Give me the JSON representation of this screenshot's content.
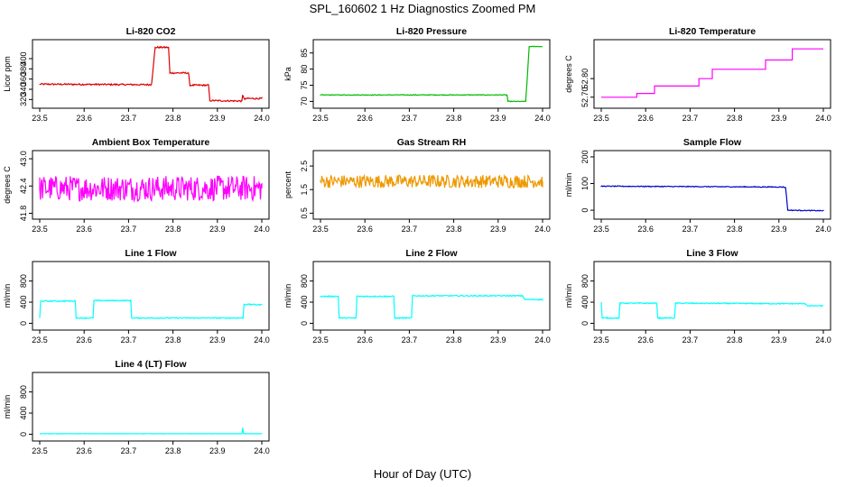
{
  "figure": {
    "title": "SPL_160602  1 Hz Diagnostics Zoomed PM",
    "xlabel": "Hour of Day (UTC)"
  },
  "chart_data": [
    {
      "type": "line",
      "title": "Li-820 CO2",
      "ylabel": "Licor ppm",
      "color": "#dd0000",
      "xlim": [
        23.5,
        24.0
      ],
      "ylim": [
        310,
        430
      ],
      "xticks": [
        "23.5",
        "23.6",
        "23.7",
        "23.8",
        "23.9",
        "24.0"
      ],
      "yticks": [
        {
          "value": 320,
          "label": "320"
        },
        {
          "value": 340,
          "label": "340"
        },
        {
          "value": 360,
          "label": "360"
        },
        {
          "value": 380,
          "label": "380"
        },
        {
          "value": 400,
          "label": "400"
        }
      ],
      "series": [
        {
          "name": "CO2",
          "noise": 1.5,
          "x": [
            23.5,
            23.75,
            23.752,
            23.76,
            23.765,
            23.79,
            23.793,
            23.835,
            23.838,
            23.88,
            23.883,
            23.955,
            23.957,
            23.962,
            23.965,
            24.0
          ],
          "y": [
            350,
            349,
            352,
            422,
            422,
            422,
            372,
            372,
            348,
            348,
            318,
            317,
            328,
            320,
            322,
            322
          ]
        }
      ]
    },
    {
      "type": "line",
      "title": "Li-820 Pressure",
      "ylabel": "kPa",
      "color": "#00bb00",
      "xlim": [
        23.5,
        24.0
      ],
      "ylim": [
        69,
        88
      ],
      "xticks": [
        "23.5",
        "23.6",
        "23.7",
        "23.8",
        "23.9",
        "24.0"
      ],
      "yticks": [
        {
          "value": 70,
          "label": "70"
        },
        {
          "value": 75,
          "label": "75"
        },
        {
          "value": 80,
          "label": "80"
        },
        {
          "value": 85,
          "label": "85"
        }
      ],
      "series": [
        {
          "name": "Pressure",
          "noise": 0.1,
          "x": [
            23.5,
            23.92,
            23.922,
            23.962,
            23.965,
            23.968,
            23.97,
            24.0
          ],
          "y": [
            72,
            72,
            70,
            70,
            76,
            83,
            87,
            87
          ]
        }
      ]
    },
    {
      "type": "line",
      "title": "Li-820 Temperature",
      "ylabel": "degrees C",
      "color": "#ff00ff",
      "xlim": [
        23.5,
        24.0
      ],
      "ylim": [
        52.66,
        52.99
      ],
      "xticks": [
        "23.5",
        "23.6",
        "23.7",
        "23.8",
        "23.9",
        "24.0"
      ],
      "yticks": [
        {
          "value": 52.7,
          "label": "52.70"
        },
        {
          "value": 52.8,
          "label": "52.80"
        }
      ],
      "series": [
        {
          "name": "Temperature",
          "noise": 0.0,
          "x": [
            23.5,
            23.58,
            23.58,
            23.62,
            23.62,
            23.72,
            23.72,
            23.75,
            23.75,
            23.87,
            23.87,
            23.93,
            23.93,
            24.0
          ],
          "y": [
            52.7,
            52.7,
            52.72,
            52.72,
            52.76,
            52.76,
            52.8,
            52.8,
            52.85,
            52.85,
            52.9,
            52.9,
            52.96,
            52.96
          ]
        }
      ]
    },
    {
      "type": "line",
      "title": "Ambient Box Temperature",
      "ylabel": "degrees C",
      "color": "#ff00ff",
      "xlim": [
        23.5,
        24.0
      ],
      "ylim": [
        41.75,
        43.1
      ],
      "xticks": [
        "23.5",
        "23.6",
        "23.7",
        "23.8",
        "23.9",
        "24.0"
      ],
      "yticks": [
        {
          "value": 41.8,
          "label": "41.8"
        },
        {
          "value": 42.4,
          "label": "42.4"
        },
        {
          "value": 43.0,
          "label": "43.0"
        }
      ],
      "series": [
        {
          "name": "Box Temperature",
          "noise": 0.28,
          "x": [
            23.5,
            24.0
          ],
          "y": [
            42.35,
            42.35
          ]
        }
      ]
    },
    {
      "type": "line",
      "title": "Gas Stream RH",
      "ylabel": "percent",
      "color": "#ee9900",
      "xlim": [
        23.5,
        24.0
      ],
      "ylim": [
        0.4,
        3.0
      ],
      "xticks": [
        "23.5",
        "23.6",
        "23.7",
        "23.8",
        "23.9",
        "24.0"
      ],
      "yticks": [
        {
          "value": 0.5,
          "label": "0.5"
        },
        {
          "value": 1.5,
          "label": "1.5"
        },
        {
          "value": 2.5,
          "label": "2.5"
        }
      ],
      "series": [
        {
          "name": "RH",
          "noise": 0.28,
          "x": [
            23.5,
            24.0
          ],
          "y": [
            1.85,
            1.85
          ]
        }
      ]
    },
    {
      "type": "line",
      "title": "Sample Flow",
      "ylabel": "ml/min",
      "color": "#0000cc",
      "xlim": [
        23.5,
        24.0
      ],
      "ylim": [
        -20,
        210
      ],
      "xticks": [
        "23.5",
        "23.6",
        "23.7",
        "23.8",
        "23.9",
        "24.0"
      ],
      "yticks": [
        {
          "value": 0,
          "label": "0"
        },
        {
          "value": 100,
          "label": "100"
        },
        {
          "value": 200,
          "label": "200"
        }
      ],
      "series": [
        {
          "name": "Sample Flow",
          "noise": 1.5,
          "x": [
            23.5,
            23.91,
            23.915,
            23.92,
            24.0
          ],
          "y": [
            90,
            87,
            85,
            0,
            -2
          ]
        }
      ]
    },
    {
      "type": "line",
      "title": "Line 1 Flow",
      "ylabel": "ml/min",
      "color": "#00ffff",
      "xlim": [
        23.5,
        24.0
      ],
      "ylim": [
        -60,
        1100
      ],
      "xticks": [
        "23.5",
        "23.6",
        "23.7",
        "23.8",
        "23.9",
        "24.0"
      ],
      "yticks": [
        {
          "value": 0,
          "label": "0"
        },
        {
          "value": 400,
          "label": "400"
        },
        {
          "value": 800,
          "label": "800"
        }
      ],
      "series": [
        {
          "name": "Line 1",
          "noise": 10,
          "x": [
            23.5,
            23.502,
            23.505,
            23.58,
            23.582,
            23.62,
            23.622,
            23.705,
            23.707,
            23.958,
            23.96,
            24.0
          ],
          "y": [
            100,
            420,
            420,
            420,
            100,
            100,
            430,
            430,
            100,
            100,
            360,
            350
          ]
        }
      ]
    },
    {
      "type": "line",
      "title": "Line 2 Flow",
      "ylabel": "ml/min",
      "color": "#00ffff",
      "xlim": [
        23.5,
        24.0
      ],
      "ylim": [
        -60,
        1100
      ],
      "xticks": [
        "23.5",
        "23.6",
        "23.7",
        "23.8",
        "23.9",
        "24.0"
      ],
      "yticks": [
        {
          "value": 0,
          "label": "0"
        },
        {
          "value": 400,
          "label": "400"
        },
        {
          "value": 800,
          "label": "800"
        }
      ],
      "series": [
        {
          "name": "Line 2",
          "noise": 10,
          "x": [
            23.5,
            23.54,
            23.542,
            23.58,
            23.582,
            23.665,
            23.667,
            23.705,
            23.707,
            23.955,
            23.96,
            24.0
          ],
          "y": [
            510,
            510,
            100,
            100,
            510,
            510,
            100,
            100,
            520,
            520,
            450,
            450
          ]
        }
      ]
    },
    {
      "type": "line",
      "title": "Line 3 Flow",
      "ylabel": "ml/min",
      "color": "#00ffff",
      "xlim": [
        23.5,
        24.0
      ],
      "ylim": [
        -60,
        1100
      ],
      "xticks": [
        "23.5",
        "23.6",
        "23.7",
        "23.8",
        "23.9",
        "24.0"
      ],
      "yticks": [
        {
          "value": 0,
          "label": "0"
        },
        {
          "value": 400,
          "label": "400"
        },
        {
          "value": 800,
          "label": "800"
        }
      ],
      "series": [
        {
          "name": "Line 3",
          "noise": 10,
          "x": [
            23.5,
            23.502,
            23.505,
            23.54,
            23.542,
            23.625,
            23.627,
            23.665,
            23.667,
            23.96,
            23.965,
            24.0
          ],
          "y": [
            400,
            100,
            100,
            100,
            380,
            380,
            100,
            100,
            380,
            370,
            330,
            330
          ]
        }
      ]
    },
    {
      "type": "line",
      "title": "Line 4 (LT) Flow",
      "ylabel": "ml/min",
      "color": "#00ffff",
      "xlim": [
        23.5,
        24.0
      ],
      "ylim": [
        -60,
        1100
      ],
      "xticks": [
        "23.5",
        "23.6",
        "23.7",
        "23.8",
        "23.9",
        "24.0"
      ],
      "yticks": [
        {
          "value": 0,
          "label": "0"
        },
        {
          "value": 400,
          "label": "400"
        },
        {
          "value": 800,
          "label": "800"
        }
      ],
      "series": [
        {
          "name": "Line 4",
          "noise": 2,
          "x": [
            23.5,
            23.955,
            23.957,
            23.959,
            23.961,
            24.0
          ],
          "y": [
            10,
            10,
            120,
            10,
            10,
            10
          ]
        }
      ]
    }
  ]
}
